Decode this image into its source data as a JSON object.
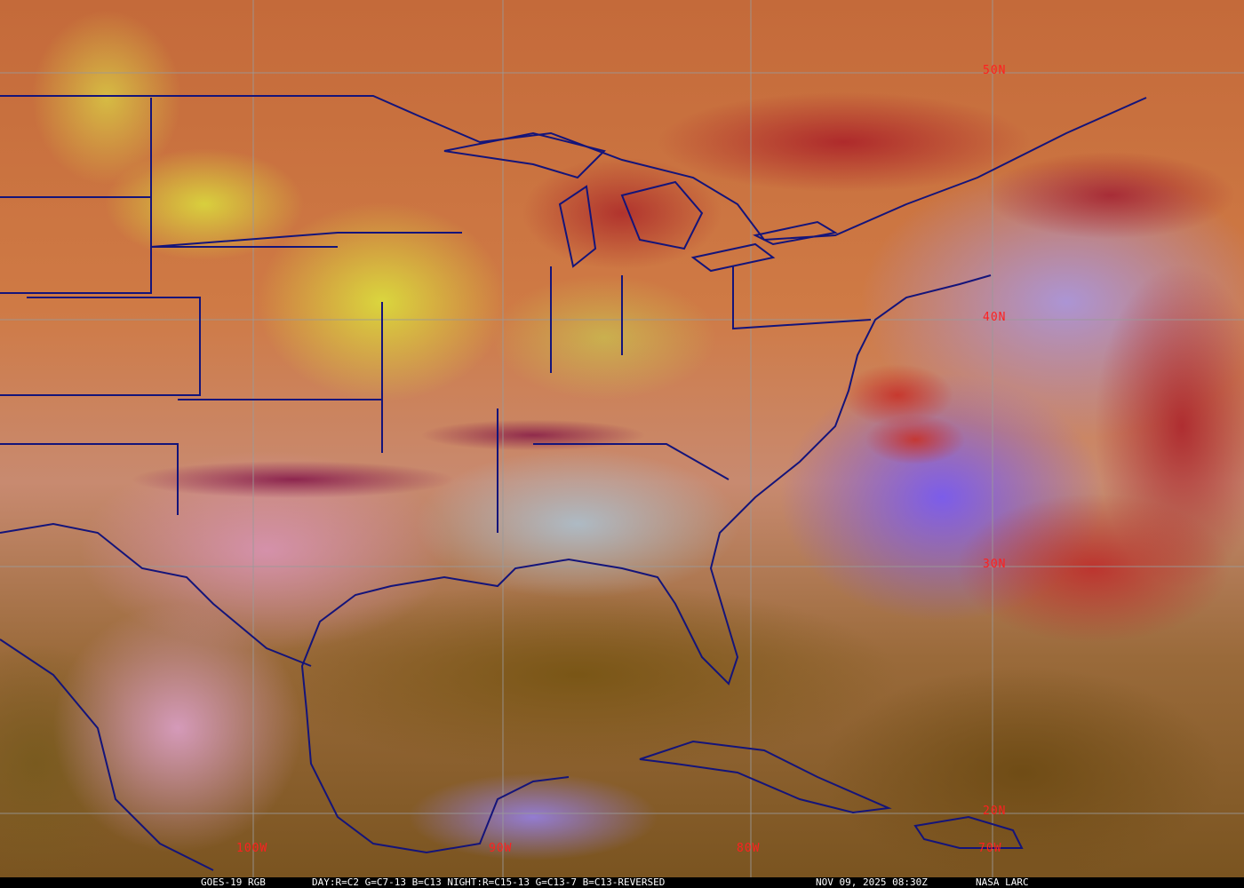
{
  "map": {
    "latitude_labels": [
      "50N",
      "40N",
      "30N",
      "20N"
    ],
    "longitude_labels": [
      "100W",
      "90W",
      "80W",
      "70W"
    ],
    "colors": {
      "grid": "#9a9a9a",
      "borders": "#14147a",
      "labels": "#ff2020"
    }
  },
  "caption": {
    "product": "GOES-19 RGB",
    "recipe": "DAY:R=C2 G=C7-13 B=C13 NIGHT:R=C15-13 G=C13-7 B=C13-REVERSED",
    "timestamp": "NOV 09, 2025 08:30Z",
    "credit": "NASA LARC"
  }
}
